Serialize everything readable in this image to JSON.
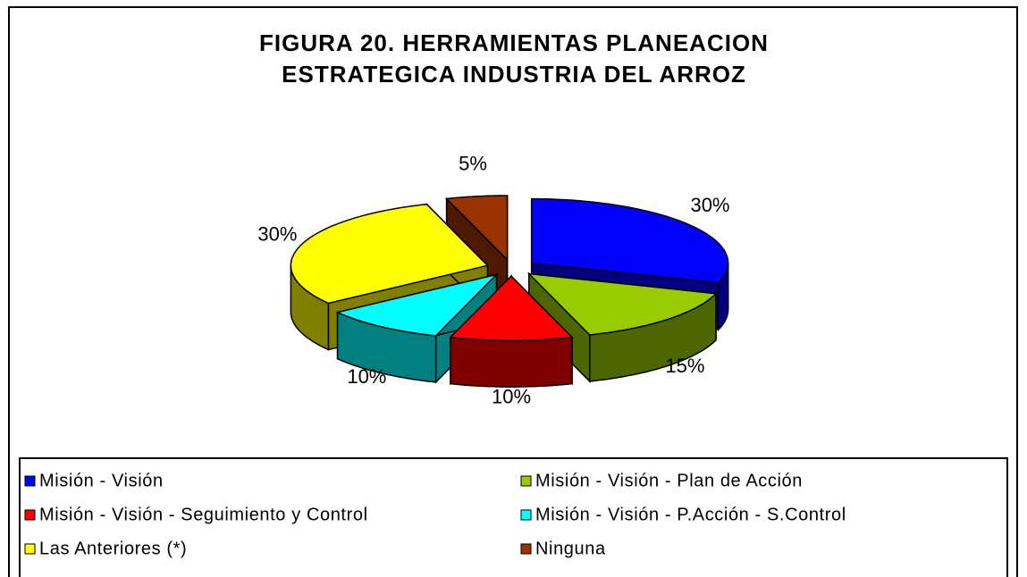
{
  "chart_data": {
    "type": "pie",
    "title": [
      "FIGURA 20. HERRAMIENTAS PLANEACION",
      "ESTRATEGICA INDUSTRIA DEL ARROZ"
    ],
    "categories": [
      "Misión - Visión",
      "Misión - Visión - Plan de Acción",
      "Misión - Visión - Seguimiento y Control",
      "Misión - Visión - P.Acción - S.Control",
      "Las Anteriores (*)",
      "Ninguna"
    ],
    "values": [
      30,
      15,
      10,
      10,
      30,
      5
    ],
    "value_labels": [
      "30%",
      "15%",
      "10%",
      "10%",
      "30%",
      "5%"
    ],
    "colors": [
      "#0000ff",
      "#99cc00",
      "#ff0000",
      "#00ffff",
      "#ffff00",
      "#993300"
    ],
    "legend": "bottom"
  }
}
